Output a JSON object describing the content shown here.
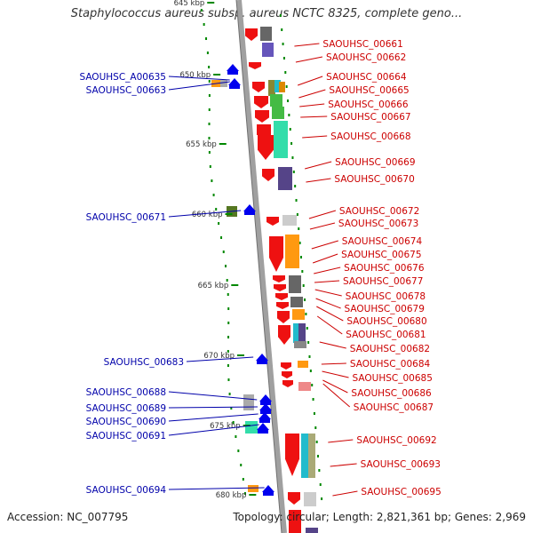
{
  "title": "Staphylococcus aureus subsp. aureus NCTC 8325, complete geno...",
  "accession": "Accession: NC_007795",
  "summary": "Topology: circular; Length: 2,821,361 bp; Genes: 2,969",
  "colors": {
    "forward_label": "#cc0000",
    "reverse_label": "#0000aa",
    "tick": "#008800",
    "backbone": "#a0a0a0"
  },
  "kbp_ticks": [
    "645 kbp",
    "650 kbp",
    "655 kbp",
    "660 kbp",
    "665 kbp",
    "670 kbp",
    "675 kbp",
    "680 kbp"
  ],
  "forward_genes": [
    "SAOUHSC_00661",
    "SAOUHSC_00662",
    "SAOUHSC_00664",
    "SAOUHSC_00665",
    "SAOUHSC_00666",
    "SAOUHSC_00667",
    "SAOUHSC_00668",
    "SAOUHSC_00669",
    "SAOUHSC_00670",
    "SAOUHSC_00672",
    "SAOUHSC_00673",
    "SAOUHSC_00674",
    "SAOUHSC_00675",
    "SAOUHSC_00676",
    "SAOUHSC_00677",
    "SAOUHSC_00678",
    "SAOUHSC_00679",
    "SAOUHSC_00680",
    "SAOUHSC_00681",
    "SAOUHSC_00682",
    "SAOUHSC_00684",
    "SAOUHSC_00685",
    "SAOUHSC_00686",
    "SAOUHSC_00687",
    "SAOUHSC_00692",
    "SAOUHSC_00693",
    "SAOUHSC_00695"
  ],
  "reverse_genes": [
    "SAOUHSC_A00635",
    "SAOUHSC_00663",
    "SAOUHSC_00671",
    "SAOUHSC_00683",
    "SAOUHSC_00688",
    "SAOUHSC_00689",
    "SAOUHSC_00690",
    "SAOUHSC_00691",
    "SAOUHSC_00694"
  ]
}
